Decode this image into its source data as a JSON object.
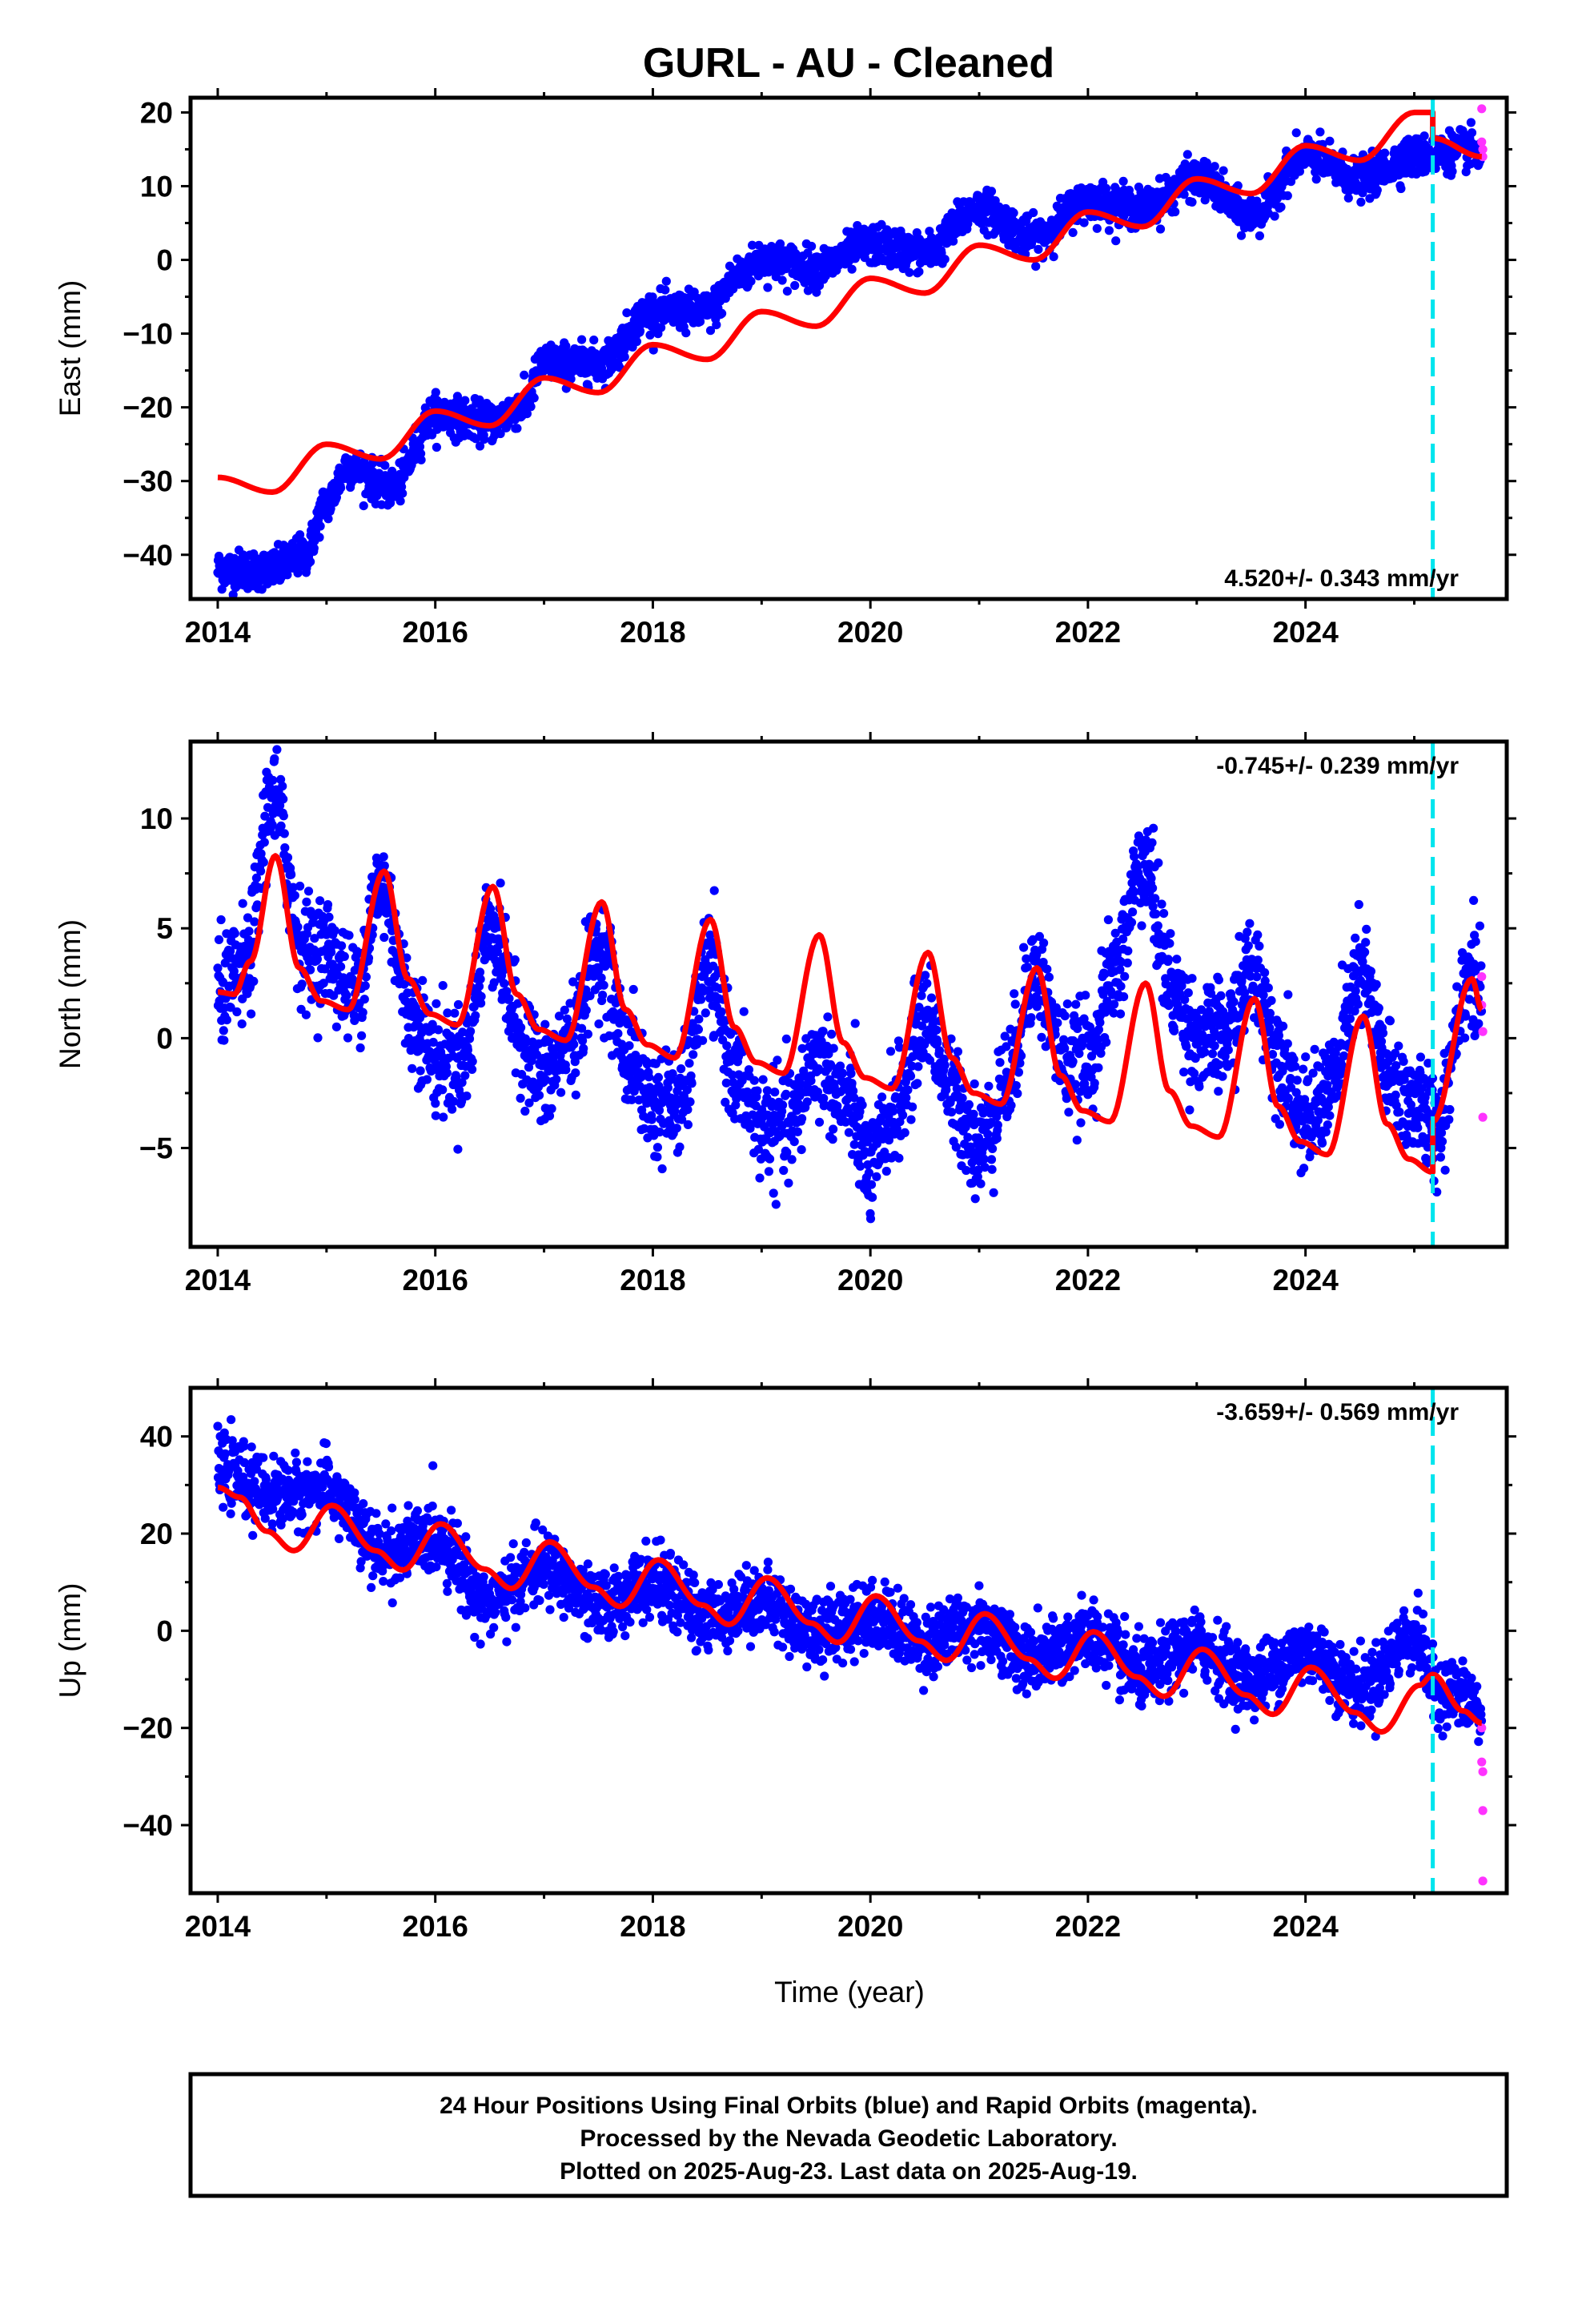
{
  "title": "GURL  - AU - Cleaned",
  "colors": {
    "final_orbits": "#0000ff",
    "rapid_orbits": "#ff33ff",
    "model": "#ff0000",
    "event_line": "#00e5ee"
  },
  "footer": {
    "line1": "24 Hour Positions Using Final Orbits (blue) and Rapid Orbits (magenta).",
    "line2": "Processed by the Nevada Geodetic Laboratory.",
    "line3": "Plotted on 2025-Aug-23. Last data on 2025-Aug-19."
  },
  "chart_data": [
    {
      "type": "scatter",
      "panel": "east",
      "title": "",
      "xlabel": "",
      "ylabel": "East (mm)",
      "xlim": [
        2013.75,
        2025.85
      ],
      "ylim": [
        -46,
        22
      ],
      "x_ticks": [
        2014,
        2016,
        2018,
        2020,
        2022,
        2024
      ],
      "x_tick_labels": [
        "2014",
        "2016",
        "2018",
        "2020",
        "2022",
        "2024"
      ],
      "y_ticks": [
        -40,
        -30,
        -20,
        -10,
        0,
        10,
        20
      ],
      "y_tick_labels": [
        "−40",
        "−30",
        "−20",
        "−10",
        "0",
        "10",
        "20"
      ],
      "rate_label": "4.520+/- 0.343 mm/yr",
      "rate_position": "bottom-right",
      "event_line_x": 2025.17,
      "final_orbits_trend": {
        "x": [
          2014.0,
          2014.5,
          2014.8,
          2015.0,
          2015.2,
          2015.6,
          2016.0,
          2016.5,
          2016.8,
          2017.0,
          2017.5,
          2018.0,
          2018.5,
          2018.8,
          2019.0,
          2019.5,
          2020.0,
          2020.5,
          2021.0,
          2021.5,
          2022.0,
          2022.5,
          2023.0,
          2023.5,
          2024.0,
          2024.5,
          2025.0,
          2025.5,
          2025.62
        ],
        "y": [
          -42,
          -42,
          -40,
          -33,
          -28,
          -31,
          -21,
          -22,
          -20,
          -14,
          -14,
          -7,
          -7,
          -2,
          0,
          -1,
          2,
          1,
          7,
          3,
          8,
          7,
          11,
          6,
          14,
          11,
          14,
          15,
          14
        ]
      },
      "final_orbits_noise_sd": 1.3,
      "rapid_orbits": {
        "x": [
          2025.62,
          2025.62,
          2025.63,
          2025.63
        ],
        "y": [
          20.5,
          16,
          15,
          14
        ]
      },
      "model": {
        "x": [
          2014.0,
          2014.5,
          2015.0,
          2015.5,
          2016.0,
          2016.5,
          2017.0,
          2017.5,
          2018.0,
          2018.5,
          2019.0,
          2019.5,
          2020.0,
          2020.5,
          2021.0,
          2021.5,
          2022.0,
          2022.5,
          2023.0,
          2023.5,
          2024.0,
          2024.5,
          2025.0,
          2025.17,
          2025.17,
          2025.62
        ],
        "y": [
          -29.5,
          -31.5,
          -25,
          -27,
          -20.5,
          -22.5,
          -16,
          -18,
          -11.5,
          -13.5,
          -7,
          -9,
          -2.5,
          -4.5,
          2,
          0,
          6.5,
          4.5,
          11,
          9,
          15.5,
          13.5,
          20,
          20,
          16.5,
          14
        ]
      }
    },
    {
      "type": "scatter",
      "panel": "north",
      "title": "",
      "xlabel": "",
      "ylabel": "North (mm)",
      "xlim": [
        2013.75,
        2025.85
      ],
      "ylim": [
        -9.5,
        13.5
      ],
      "x_ticks": [
        2014,
        2016,
        2018,
        2020,
        2022,
        2024
      ],
      "x_tick_labels": [
        "2014",
        "2016",
        "2018",
        "2020",
        "2022",
        "2024"
      ],
      "y_ticks": [
        -5,
        0,
        5,
        10
      ],
      "y_tick_labels": [
        "−5",
        "0",
        "5",
        "10"
      ],
      "rate_label": "-0.745+/- 0.239 mm/yr",
      "rate_position": "top-right",
      "event_line_x": 2025.17,
      "final_orbits_trend": {
        "x": [
          2014.0,
          2014.25,
          2014.5,
          2014.8,
          2015.0,
          2015.25,
          2015.5,
          2015.8,
          2016.0,
          2016.25,
          2016.5,
          2016.8,
          2017.0,
          2017.25,
          2017.5,
          2017.8,
          2018.0,
          2018.25,
          2018.5,
          2018.8,
          2019.0,
          2019.25,
          2019.5,
          2019.8,
          2020.0,
          2020.25,
          2020.5,
          2020.8,
          2021.0,
          2021.25,
          2021.5,
          2021.8,
          2022.0,
          2022.25,
          2022.5,
          2022.8,
          2023.0,
          2023.25,
          2023.5,
          2023.8,
          2024.0,
          2024.25,
          2024.5,
          2024.8,
          2025.0,
          2025.2,
          2025.5,
          2025.62
        ],
        "y": [
          2,
          3,
          11,
          4,
          4,
          2,
          7,
          1,
          -1,
          -1,
          5,
          0,
          -2,
          0,
          4,
          -1,
          -3,
          -3,
          3,
          -2,
          -4,
          -4,
          -1,
          -3,
          -6,
          -3,
          1,
          -3,
          -5,
          -2,
          3,
          -1,
          -1,
          3,
          8,
          2,
          0,
          0,
          3,
          -1,
          -4,
          -2,
          3,
          -2,
          -3,
          -4,
          3,
          2
        ]
      },
      "final_orbits_noise_sd": 1.2,
      "rapid_orbits": {
        "x": [
          2025.62,
          2025.62,
          2025.63,
          2025.63
        ],
        "y": [
          2.8,
          1.5,
          0.3,
          -3.6
        ]
      },
      "model": {
        "x": [
          2014.0,
          2014.15,
          2014.3,
          2014.53,
          2014.75,
          2014.95,
          2015.2,
          2015.53,
          2015.75,
          2015.95,
          2016.2,
          2016.53,
          2016.75,
          2016.95,
          2017.2,
          2017.53,
          2017.75,
          2017.95,
          2018.2,
          2018.53,
          2018.75,
          2018.95,
          2019.2,
          2019.53,
          2019.75,
          2019.95,
          2020.2,
          2020.53,
          2020.75,
          2020.95,
          2021.2,
          2021.53,
          2021.75,
          2021.95,
          2022.2,
          2022.53,
          2022.75,
          2022.95,
          2023.2,
          2023.53,
          2023.75,
          2023.95,
          2024.2,
          2024.53,
          2024.75,
          2024.95,
          2025.17,
          2025.17,
          2025.53,
          2025.62
        ],
        "y": [
          2.1,
          2.0,
          3.5,
          8.3,
          3.2,
          1.7,
          1.3,
          7.6,
          2.7,
          1.1,
          0.6,
          6.9,
          2.0,
          0.4,
          -0.1,
          6.2,
          1.3,
          -0.3,
          -0.9,
          5.4,
          0.5,
          -1.1,
          -1.6,
          4.7,
          -0.2,
          -1.8,
          -2.3,
          3.9,
          -0.9,
          -2.5,
          -3.0,
          3.2,
          -1.7,
          -3.3,
          -3.8,
          2.5,
          -2.4,
          -4.0,
          -4.5,
          1.8,
          -3.1,
          -4.7,
          -5.3,
          1.0,
          -3.9,
          -5.5,
          -6.1,
          -3.8,
          2.7,
          1.3
        ]
      }
    },
    {
      "type": "scatter",
      "panel": "up",
      "title": "",
      "xlabel": "Time (year)",
      "ylabel": "Up (mm)",
      "xlim": [
        2013.75,
        2025.85
      ],
      "ylim": [
        -54,
        50
      ],
      "x_ticks": [
        2014,
        2016,
        2018,
        2020,
        2022,
        2024
      ],
      "x_tick_labels": [
        "2014",
        "2016",
        "2018",
        "2020",
        "2022",
        "2024"
      ],
      "y_ticks": [
        -40,
        -20,
        0,
        20,
        40
      ],
      "y_tick_labels": [
        "−40",
        "−20",
        "0",
        "20",
        "40"
      ],
      "rate_label": "-3.659+/- 0.569 mm/yr",
      "rate_position": "top-right",
      "event_line_x": 2025.17,
      "final_orbits_trend": {
        "x": [
          2014.0,
          2014.5,
          2015.0,
          2015.5,
          2016.0,
          2016.5,
          2017.0,
          2017.5,
          2018.0,
          2018.5,
          2019.0,
          2019.5,
          2020.0,
          2020.5,
          2021.0,
          2021.5,
          2022.0,
          2022.5,
          2023.0,
          2023.5,
          2024.0,
          2024.5,
          2025.0,
          2025.2,
          2025.5,
          2025.62
        ],
        "y": [
          33,
          28,
          29,
          16,
          19,
          6,
          13,
          5,
          10,
          3,
          6,
          0,
          3,
          -2,
          1,
          -6,
          -1,
          -9,
          -3,
          -10,
          -4,
          -12,
          -1,
          -12,
          -14,
          -18
        ]
      },
      "final_orbits_noise_sd": 3.5,
      "rapid_orbits": {
        "x": [
          2025.62,
          2025.62,
          2025.63,
          2025.63,
          2025.63
        ],
        "y": [
          -20,
          -27,
          -29,
          -37,
          -51.5
        ]
      },
      "model": {
        "x": [
          2014.0,
          2014.2,
          2014.45,
          2014.7,
          2015.05,
          2015.45,
          2015.7,
          2016.05,
          2016.45,
          2016.7,
          2017.05,
          2017.45,
          2017.7,
          2018.05,
          2018.45,
          2018.7,
          2019.05,
          2019.45,
          2019.7,
          2020.05,
          2020.45,
          2020.7,
          2021.05,
          2021.45,
          2021.7,
          2022.05,
          2022.45,
          2022.7,
          2023.05,
          2023.45,
          2023.7,
          2024.05,
          2024.45,
          2024.7,
          2025.05,
          2025.17,
          2025.45,
          2025.62
        ],
        "y": [
          29.5,
          27.5,
          20.5,
          16.5,
          25.8,
          16.5,
          12.5,
          22.0,
          12.7,
          8.7,
          18.3,
          9.0,
          5.0,
          14.6,
          5.3,
          1.3,
          10.9,
          1.6,
          -2.4,
          7.2,
          -2.1,
          -6.1,
          3.5,
          -5.8,
          -9.8,
          -0.2,
          -9.5,
          -13.5,
          -3.8,
          -13.2,
          -17.2,
          -7.5,
          -16.8,
          -20.8,
          -11.2,
          -9.0,
          -16.5,
          -19.0
        ]
      }
    }
  ]
}
